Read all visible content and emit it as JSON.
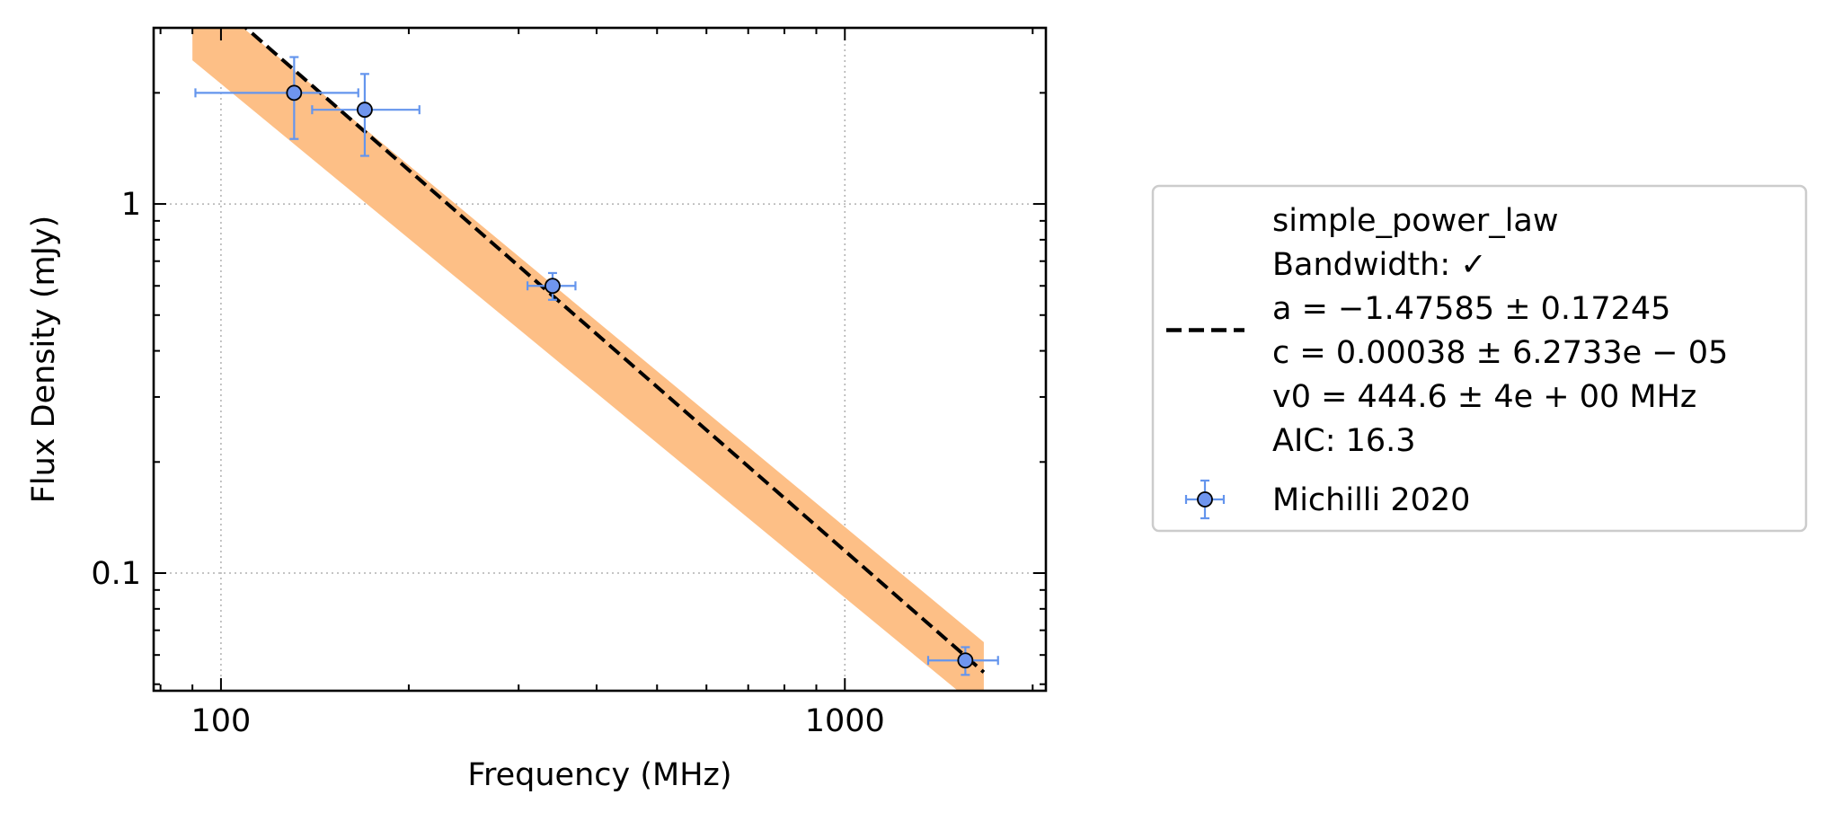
{
  "chart_data": {
    "type": "scatter",
    "title": "",
    "xlabel": "Frequency (MHz)",
    "ylabel": "Flux Density (mJy)",
    "xscale": "log",
    "yscale": "log",
    "xlim": [
      78,
      2100
    ],
    "ylim": [
      0.048,
      3.0
    ],
    "grid": true,
    "x_tick_labels": [
      {
        "value": 100,
        "label": "100"
      },
      {
        "value": 1000,
        "label": "1000"
      }
    ],
    "y_tick_labels": [
      {
        "value": 1,
        "label": "1"
      },
      {
        "value": 0.1,
        "label": "0.1"
      }
    ],
    "points": [
      {
        "x": 131,
        "y": 2.0,
        "xerr_low": 40,
        "xerr_high": 35,
        "yerr_low": 0.5,
        "yerr_high": 0.5
      },
      {
        "x": 170,
        "y": 1.8,
        "xerr_low": 30,
        "xerr_high": 38,
        "yerr_low": 0.45,
        "yerr_high": 0.45
      },
      {
        "x": 340,
        "y": 0.6,
        "xerr_low": 30,
        "xerr_high": 30,
        "yerr_low": 0.05,
        "yerr_high": 0.05
      },
      {
        "x": 1560,
        "y": 0.058,
        "xerr_low": 200,
        "xerr_high": 200,
        "yerr_low": 0.005,
        "yerr_high": 0.005
      }
    ],
    "fit": {
      "a": -1.47585,
      "c": 0.00038,
      "v0": 444.6,
      "x_range": [
        90,
        1670
      ],
      "band_at_start": [
        2.45,
        3.9
      ],
      "band_at_end": [
        0.042,
        0.065
      ]
    },
    "legend": {
      "placement": "right",
      "entries": [
        {
          "marker": "dashed-line",
          "lines": [
            "simple_power_law",
            "Bandwidth: ✓",
            "a = −1.47585 ± 0.17245",
            "c = 0.00038 ± 6.2733e − 05",
            "v0 = 444.6 ± 4e + 00 MHz",
            "AIC: 16.3"
          ]
        },
        {
          "marker": "errorbar-point",
          "lines": [
            "Michilli 2020"
          ]
        }
      ]
    },
    "colors": {
      "band": "#fdbf86",
      "fit_line": "#000000",
      "point_face": "#6f95ee",
      "errorbar": "#6495ed",
      "grid": "#b0b0b0",
      "legend_border": "#cccccc"
    }
  }
}
